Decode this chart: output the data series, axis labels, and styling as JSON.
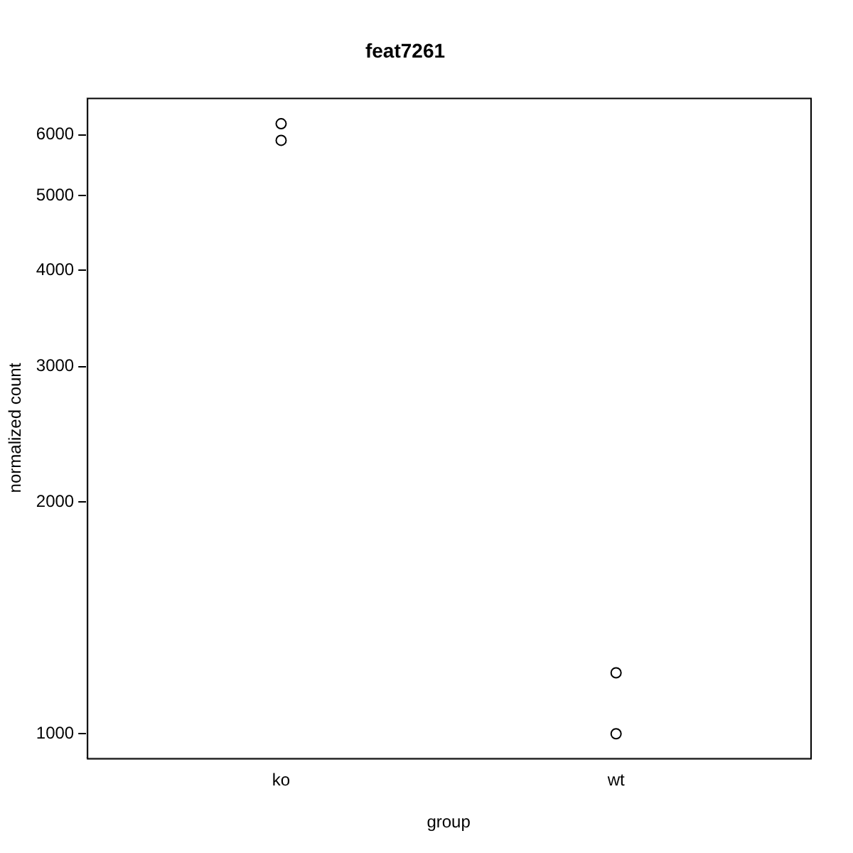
{
  "chart_data": {
    "type": "scatter",
    "title": "feat7261",
    "xlabel": "group",
    "ylabel": "normalized count",
    "categories": [
      "ko",
      "wt"
    ],
    "series": [
      {
        "x": [
          "ko",
          "ko",
          "wt",
          "wt"
        ],
        "values": [
          6200,
          5900,
          1200,
          1000
        ],
        "color": "#000000"
      }
    ],
    "marker": "circle",
    "log": true,
    "ylim": [
      930,
      6700
    ],
    "yticks": [
      1000,
      2000,
      3000,
      4000,
      5000,
      6000
    ],
    "grid": false,
    "legend": false
  }
}
